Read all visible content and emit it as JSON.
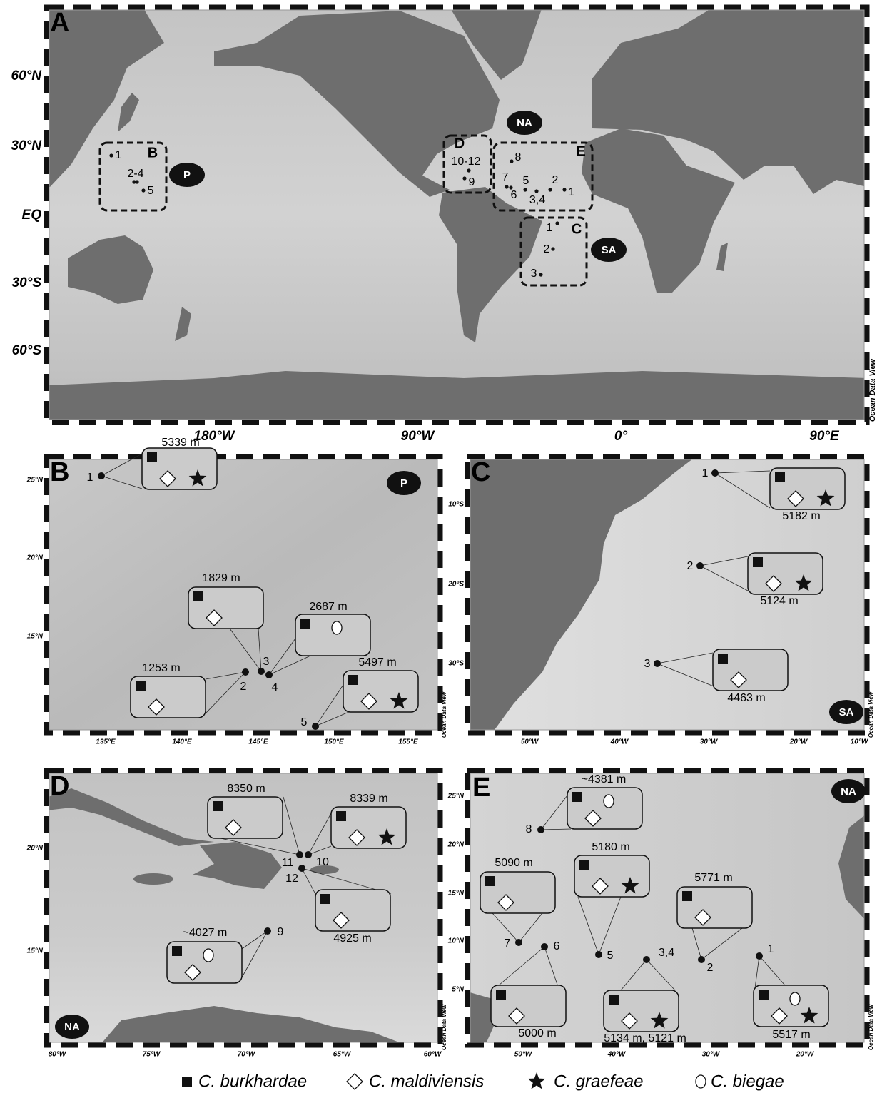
{
  "panels": {
    "A": {
      "label": "A",
      "lat_labels": [
        "60°N",
        "30°N",
        "EQ",
        "30°S",
        "60°S"
      ],
      "lon_labels": [
        "180°W",
        "90°W",
        "0°",
        "90°E"
      ],
      "credit": "Ocean Data View",
      "region_labels": [
        "B",
        "C",
        "D",
        "E"
      ],
      "ocean_labels": [
        "NA",
        "P",
        "SA"
      ],
      "site_labels": [
        "1",
        "2-4",
        "5",
        "10-12",
        "9",
        "8",
        "7",
        "5",
        "2",
        "6",
        "3,4",
        "1",
        "1",
        "2",
        "3"
      ]
    },
    "B": {
      "label": "B",
      "ocean_label": "P",
      "lat_labels": [
        "25°N",
        "20°N",
        "15°N"
      ],
      "lon_labels": [
        "135°E",
        "140°E",
        "145°E",
        "150°E",
        "155°E"
      ],
      "credit": "Ocean Data View",
      "sites": [
        {
          "number": "1",
          "depth": "5339 m"
        },
        {
          "number": "2",
          "depth": "1253 m"
        },
        {
          "number": "3",
          "depth": "1829 m"
        },
        {
          "number": "4",
          "depth": "2687 m"
        },
        {
          "number": "5",
          "depth": "5497 m"
        }
      ]
    },
    "C": {
      "label": "C",
      "ocean_label": "SA",
      "lat_labels": [
        "10°S",
        "20°S",
        "30°S"
      ],
      "lon_labels": [
        "50°W",
        "40°W",
        "30°W",
        "20°W",
        "10°W"
      ],
      "credit": "Ocean Data View",
      "sites": [
        {
          "number": "1",
          "depth": "5182 m"
        },
        {
          "number": "2",
          "depth": "5124 m"
        },
        {
          "number": "3",
          "depth": "4463 m"
        }
      ]
    },
    "D": {
      "label": "D",
      "ocean_label": "NA",
      "lat_labels": [
        "20°N",
        "15°N"
      ],
      "lon_labels": [
        "80°W",
        "75°W",
        "70°W",
        "65°W",
        "60°W"
      ],
      "credit": "Ocean Data View",
      "sites": [
        {
          "number": "9",
          "depth": "~4027 m"
        },
        {
          "number": "10",
          "depth": "8339 m"
        },
        {
          "number": "11",
          "depth": "8350 m"
        },
        {
          "number": "12",
          "depth": "4925 m"
        }
      ]
    },
    "E": {
      "label": "E",
      "ocean_label": "NA",
      "lat_labels": [
        "25°N",
        "20°N",
        "15°N",
        "10°N",
        "5°N"
      ],
      "lon_labels": [
        "50°W",
        "40°W",
        "30°W",
        "20°W"
      ],
      "credit": "Ocean Data View",
      "sites": [
        {
          "number": "1",
          "depth": "5517 m"
        },
        {
          "number": "2",
          "depth": "5771 m"
        },
        {
          "number": "3,4",
          "depth": "5134 m, 5121 m"
        },
        {
          "number": "5",
          "depth": "5180 m"
        },
        {
          "number": "6",
          "depth": "5000 m"
        },
        {
          "number": "7",
          "depth": "5090 m"
        },
        {
          "number": "8",
          "depth": "~4381 m"
        }
      ]
    }
  },
  "legend": [
    "C. burkhardae",
    "C. maldiviensis",
    "C. graefeae",
    "C. biegae"
  ]
}
